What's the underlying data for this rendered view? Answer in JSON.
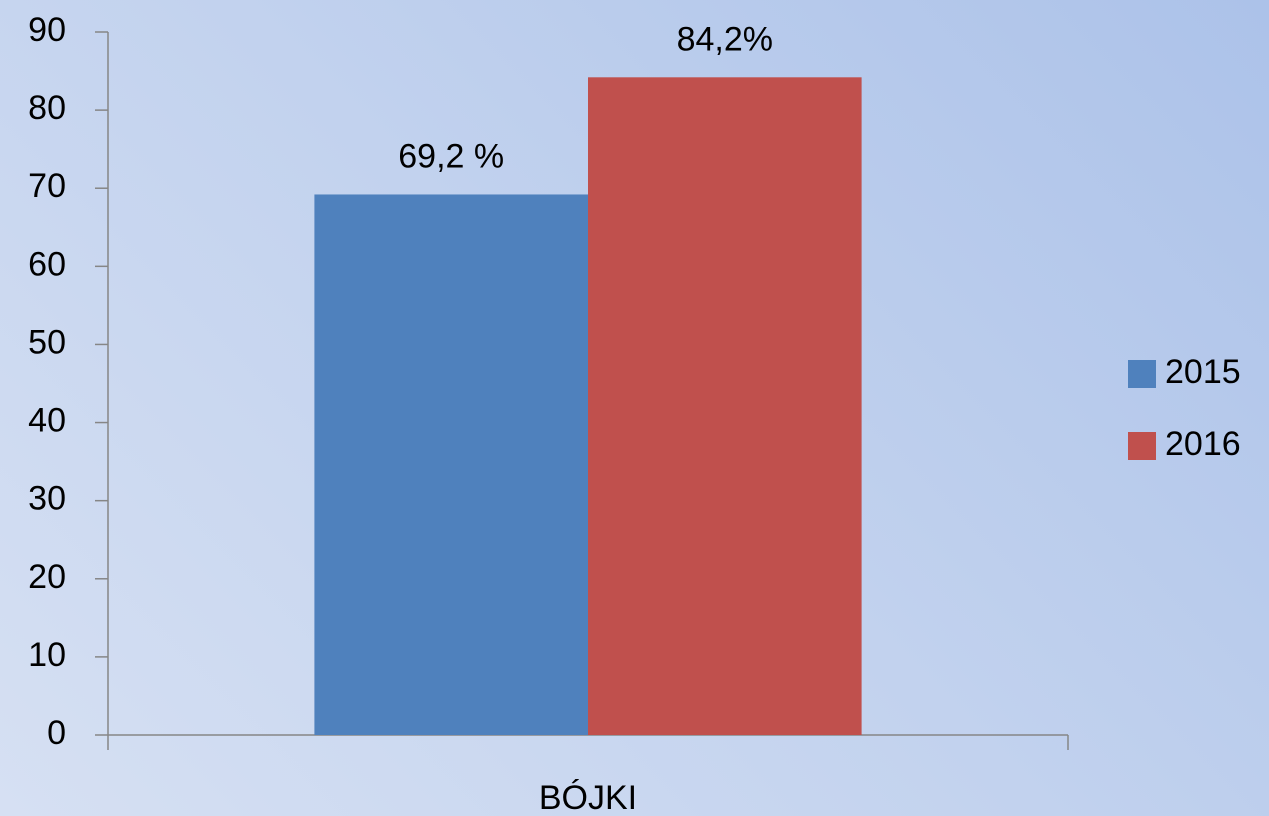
{
  "chart_data": {
    "type": "bar",
    "categories": [
      "BÓJKI"
    ],
    "series": [
      {
        "name": "2015",
        "color": "#4f81bd",
        "values": [
          69.2
        ],
        "value_labels": [
          "69,2 %"
        ]
      },
      {
        "name": "2016",
        "color": "#c0504d",
        "values": [
          84.2
        ],
        "value_labels": [
          "84,2%"
        ]
      }
    ],
    "ylim": [
      0,
      90
    ],
    "yticks": [
      0,
      10,
      20,
      30,
      40,
      50,
      60,
      70,
      80,
      90
    ],
    "grid": false,
    "legend": "right"
  }
}
